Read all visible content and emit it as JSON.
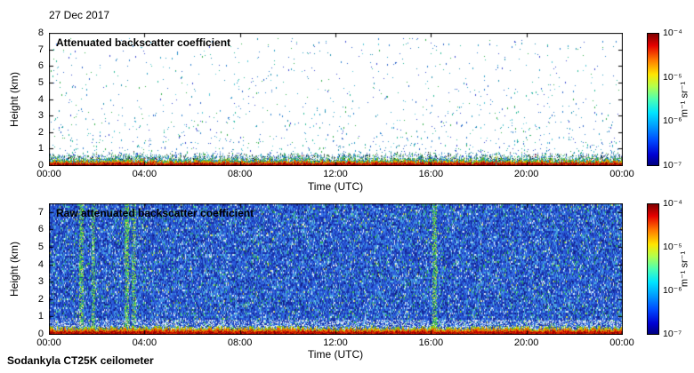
{
  "page": {
    "date_label": "27 Dec 2017",
    "footer_label": "Sodankyla CT25K ceilometer"
  },
  "chart_data": [
    {
      "type": "heatmap",
      "title": "Attenuated backscatter coefficient",
      "xlabel": "Time (UTC)",
      "ylabel": "Height (km)",
      "x_range_hours": [
        0,
        24
      ],
      "x_tick_labels": [
        "00:00",
        "04:00",
        "08:00",
        "12:00",
        "16:00",
        "20:00",
        "00:00"
      ],
      "y_range_km": [
        0,
        8
      ],
      "y_tick_labels": [
        "8",
        "7",
        "6",
        "5",
        "4",
        "3",
        "2",
        "1",
        "0"
      ],
      "color_scale": {
        "type": "log",
        "min": 1e-07,
        "max": 0.0001,
        "colormap": "jet",
        "tick_labels": [
          "10⁻⁴",
          "10⁻⁵",
          "10⁻⁶",
          "10⁻⁷"
        ],
        "unit": "m⁻¹ sr⁻¹"
      },
      "content": {
        "background": "clear sky, below detection (white)",
        "noise_speckles": {
          "count": 1500,
          "height_bias_exponent": 2.2
        },
        "surface_layer": {
          "top_km": 0.3,
          "description": "continuous red-orange surface echo with yellow/green/cyan fringe, all 24 h"
        }
      }
    },
    {
      "type": "heatmap",
      "title": "Raw attenuated backscatter coefficient",
      "xlabel": "Time (UTC)",
      "ylabel": "Height (km)",
      "x_range_hours": [
        0,
        24
      ],
      "x_tick_labels": [
        "00:00",
        "04:00",
        "08:00",
        "12:00",
        "16:00",
        "20:00",
        "00:00"
      ],
      "y_range_km": [
        0,
        7.5
      ],
      "y_tick_labels": [
        "7",
        "6",
        "5",
        "4",
        "3",
        "2",
        "1",
        "0"
      ],
      "color_scale": {
        "type": "log",
        "min": 1e-07,
        "max": 0.0001,
        "colormap": "jet",
        "tick_labels": [
          "10⁻⁴",
          "10⁻⁵",
          "10⁻⁶",
          "10⁻⁷"
        ],
        "unit": "m⁻¹ sr⁻¹"
      },
      "content": {
        "background": "dense blue instrument noise with cyan/white/green speckles at all heights",
        "precip_plumes": [
          {
            "hour": 1.35,
            "width_hours": 0.16,
            "density": 0.5
          },
          {
            "hour": 1.85,
            "width_hours": 0.12,
            "density": 0.45
          },
          {
            "hour": 3.25,
            "width_hours": 0.18,
            "density": 0.55
          },
          {
            "hour": 3.55,
            "width_hours": 0.12,
            "density": 0.4
          },
          {
            "hour": 16.15,
            "width_hours": 0.17,
            "density": 0.5
          }
        ],
        "white_band_km": [
          0.25,
          0.8
        ],
        "surface_layer": {
          "top_km": 0.3,
          "description": "red-orange surface echo with yellow/green fringe, all 24 h"
        }
      }
    }
  ]
}
